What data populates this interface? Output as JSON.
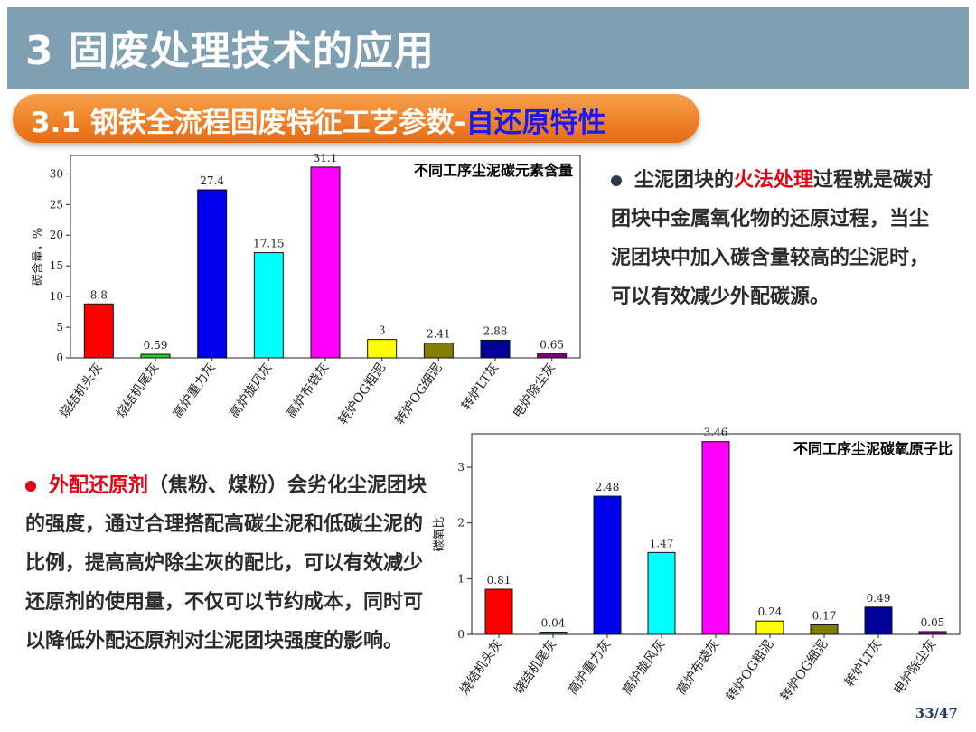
{
  "header": {
    "title": "3 固废处理技术的应用"
  },
  "section": {
    "title_main": "3.1 钢铁全流程固废特征工艺参数-",
    "title_highlight": "自还原特性"
  },
  "chart_data": [
    {
      "type": "bar",
      "title": "不同工序尘泥碳元素含量",
      "ylabel": "碳含量，%",
      "ylim": [
        0,
        33
      ],
      "yticks": [
        0,
        5,
        10,
        15,
        20,
        25,
        30
      ],
      "categories": [
        "烧结机头灰",
        "烧结机尾灰",
        "高炉重力灰",
        "高炉旋风灰",
        "高炉布袋灰",
        "转炉OG粗泥",
        "转炉OG细泥",
        "转炉LT灰",
        "电炉除尘灰"
      ],
      "values": [
        8.8,
        0.59,
        27.4,
        17.15,
        31.1,
        3,
        2.41,
        2.88,
        0.65
      ],
      "value_labels": [
        "8.8",
        "0.59",
        "27.4",
        "17.15",
        "31.1",
        "3",
        "2.41",
        "2.88",
        "0.65"
      ],
      "colors": [
        "#ff0000",
        "#22cc22",
        "#0000ee",
        "#00ffff",
        "#ff00ff",
        "#ffff00",
        "#808000",
        "#000099",
        "#800080"
      ],
      "grid": false
    },
    {
      "type": "bar",
      "title": "不同工序尘泥碳氧原子比",
      "ylabel": "碳氧比",
      "ylim": [
        0,
        3.6
      ],
      "yticks": [
        0,
        1,
        2,
        3
      ],
      "categories": [
        "烧结机头灰",
        "烧结机尾灰",
        "高炉重力灰",
        "高炉旋风灰",
        "高炉布袋灰",
        "转炉OG粗泥",
        "转炉OG细泥",
        "转炉LT灰",
        "电炉除尘灰"
      ],
      "values": [
        0.81,
        0.04,
        2.48,
        1.47,
        3.46,
        0.24,
        0.17,
        0.49,
        0.05
      ],
      "value_labels": [
        "0.81",
        "0.04",
        "2.48",
        "1.47",
        "3.46",
        "0.24",
        "0.17",
        "0.49",
        "0.05"
      ],
      "colors": [
        "#ff0000",
        "#22cc22",
        "#0000ee",
        "#00ffff",
        "#ff00ff",
        "#ffff00",
        "#808000",
        "#000099",
        "#800080"
      ],
      "grid": false
    }
  ],
  "bullet1": {
    "pre": "尘泥团块的",
    "highlight": "火法处理",
    "post": "过程就是碳对团块中金属氧化物的还原过程，当尘泥团块中加入碳含量较高的尘泥时，可以有效减少外配碳源。",
    "dot_color": "#2b3a4a"
  },
  "bullet2": {
    "highlight": "外配还原剂",
    "post": "（焦粉、煤粉）会劣化尘泥团块的强度，通过合理搭配高碳尘泥和低碳尘泥的比例，提高高炉除尘灰的配比，可以有效减少还原剂的使用量，不仅可以节约成本，同时可以降低外配还原剂对尘泥团块强度的影响。",
    "dot_color": "#e60012"
  },
  "footer": {
    "page": "33/47"
  }
}
